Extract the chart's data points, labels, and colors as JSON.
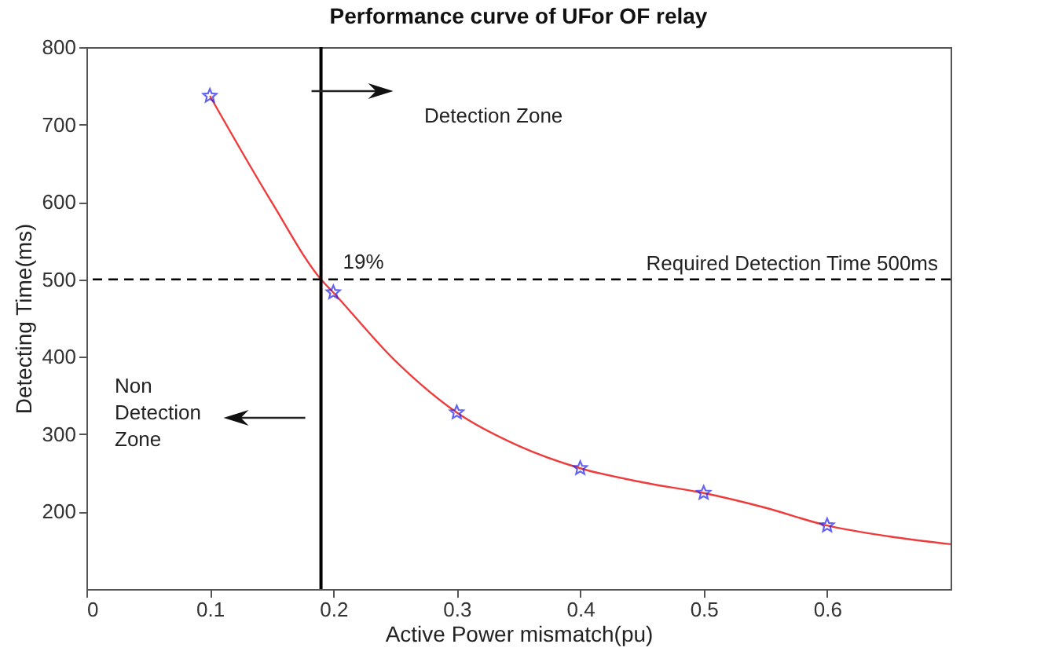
{
  "chart_data": {
    "type": "scatter",
    "title": "Performance curve of UFor OF relay",
    "xlabel": "Active Power mismatch(pu)",
    "ylabel": "Detecting Time(ms)",
    "xlim": [
      0,
      0.7
    ],
    "xticks": [
      0,
      0.1,
      0.2,
      0.3,
      0.4,
      0.5,
      0.6
    ],
    "ylim": [
      100,
      800
    ],
    "yticks": [
      200,
      300,
      400,
      500,
      600,
      700,
      800
    ],
    "grid": false,
    "series": [
      {
        "type": "line",
        "marker": "none",
        "color": "#ee3b3b",
        "x": [
          0.1,
          0.15,
          0.19,
          0.2,
          0.25,
          0.3,
          0.35,
          0.4,
          0.45,
          0.5,
          0.55,
          0.6,
          0.65,
          0.7
        ],
        "values": [
          737,
          600,
          500,
          483,
          395,
          328,
          285,
          256,
          238,
          224,
          205,
          182,
          168,
          158
        ]
      },
      {
        "type": "scatter",
        "marker": "star",
        "color": "#2222ee",
        "x": [
          0.1,
          0.2,
          0.3,
          0.4,
          0.5,
          0.6
        ],
        "values": [
          737,
          483,
          328,
          256,
          224,
          182
        ]
      }
    ],
    "ref_lines": [
      {
        "axis": "x",
        "value": 0.19,
        "color": "#000000",
        "line_style": "solid"
      },
      {
        "axis": "y",
        "value": 500,
        "label": "Required Detection Time 500ms",
        "color": "#000000",
        "line_style": "dashed"
      }
    ],
    "annotations": [
      "Detection Zone",
      "Non Detection Zone",
      {
        "text": "19%",
        "x": 0.19,
        "y": 500
      }
    ]
  }
}
